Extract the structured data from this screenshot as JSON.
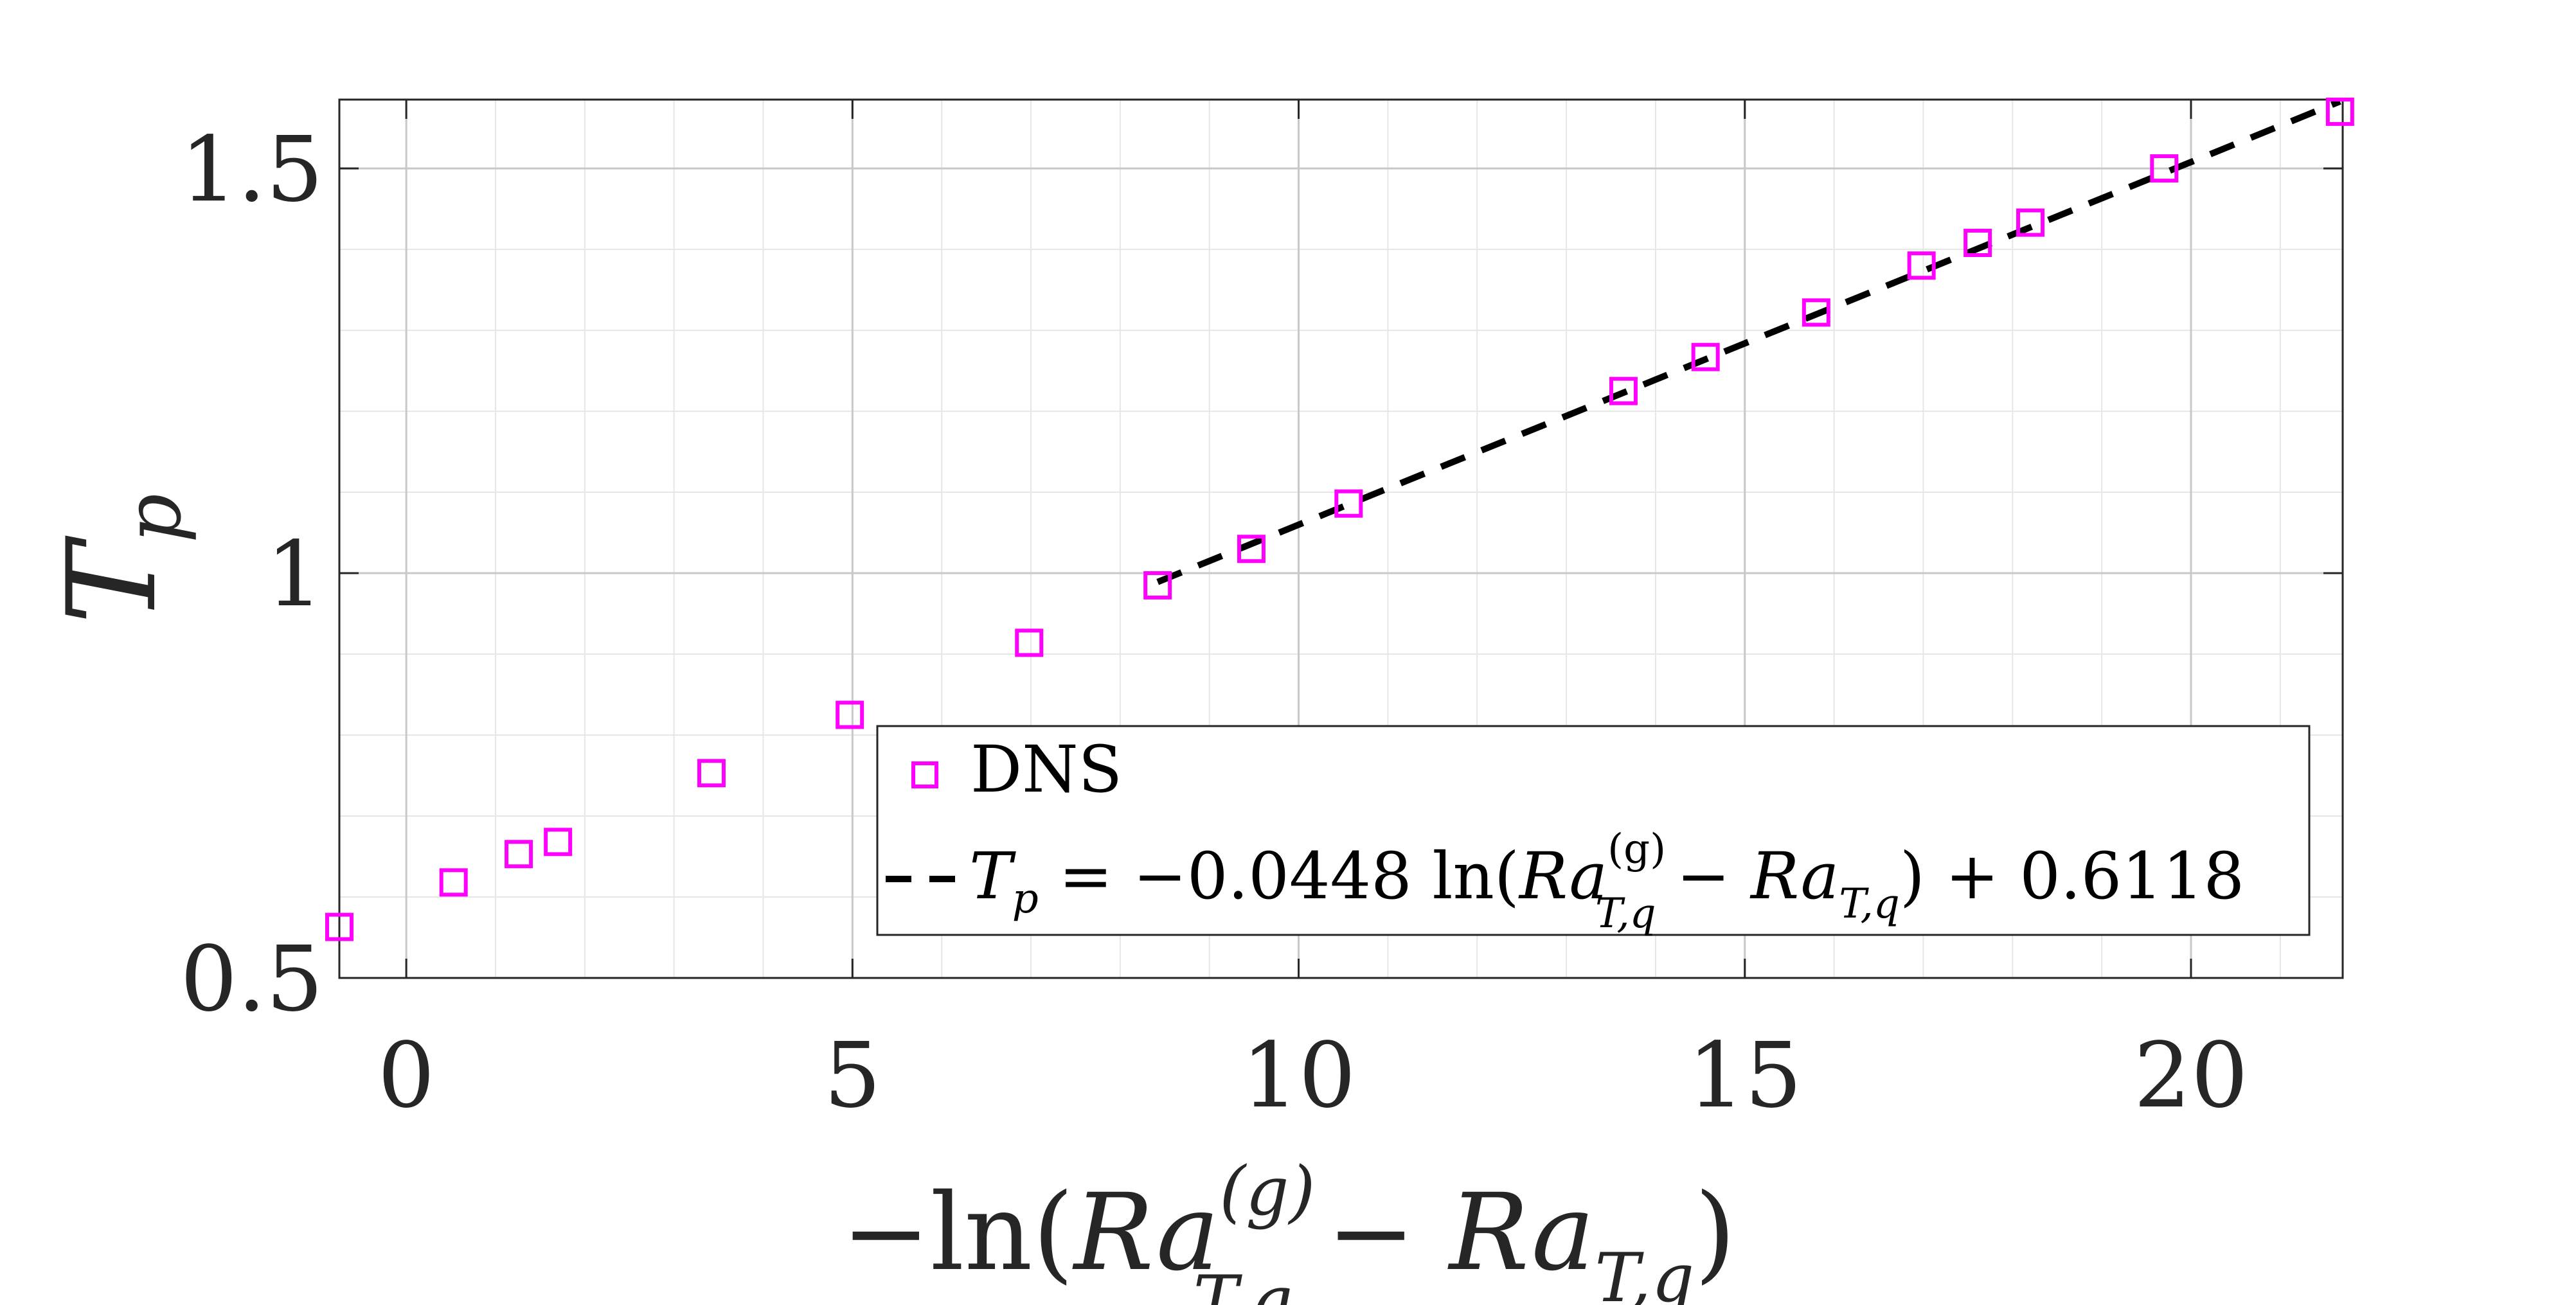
{
  "chart_data": {
    "type": "scatter",
    "title": "",
    "xlabel": "−ln(Ra_{T,q}^{(g)} − Ra_{T,q})",
    "xlabel_parts": {
      "prefix": "−ln(",
      "ra1_base": "Ra",
      "ra1_sup": "(g)",
      "ra1_sub": "T,q",
      "minus": " − ",
      "ra2_base": "Ra",
      "ra2_sub": "T,q",
      "suffix": ")"
    },
    "ylabel": "T_p",
    "ylabel_parts": {
      "base": "T",
      "sub": "p"
    },
    "xlim": [
      -0.75,
      21.7
    ],
    "ylim": [
      0.5,
      1.585
    ],
    "x_ticks": [
      0,
      5,
      10,
      15,
      20
    ],
    "x_tick_labels": [
      "0",
      "5",
      "10",
      "15",
      "20"
    ],
    "y_ticks": [
      0.5,
      1,
      1.5
    ],
    "y_tick_labels": [
      "0.5",
      "1",
      "1.5"
    ],
    "grid": true,
    "minor_grid": true,
    "legend_position": "lower-right",
    "series": [
      {
        "name": "DNS",
        "kind": "scatter",
        "marker": "square",
        "color": "#ff00ff",
        "x": [
          -0.75,
          0.53,
          1.26,
          1.7,
          3.42,
          4.97,
          6.98,
          8.42,
          9.47,
          10.56,
          13.64,
          14.56,
          15.8,
          16.98,
          17.61,
          18.2,
          19.7,
          21.67
        ],
        "y": [
          0.563,
          0.618,
          0.653,
          0.668,
          0.753,
          0.825,
          0.914,
          0.985,
          1.03,
          1.086,
          1.225,
          1.267,
          1.322,
          1.38,
          1.408,
          1.433,
          1.5,
          1.57
        ]
      },
      {
        "name": "fit",
        "kind": "line",
        "style": "dashed",
        "color": "#000000",
        "x": [
          8.42,
          21.67
        ],
        "y": [
          0.9891,
          1.5827
        ]
      }
    ],
    "legend": {
      "dns_label": "DNS",
      "fit_label_parts": {
        "lhs_base": "T",
        "lhs_sub": "p",
        "eq": " = −0.0448 ln(",
        "ra1_base": "Ra",
        "ra1_sup": "(g)",
        "ra1_sub": "T,q",
        "minus": " − ",
        "ra2_base": "Ra",
        "ra2_sub": "T,q",
        "tail": ") + 0.6118"
      }
    }
  }
}
